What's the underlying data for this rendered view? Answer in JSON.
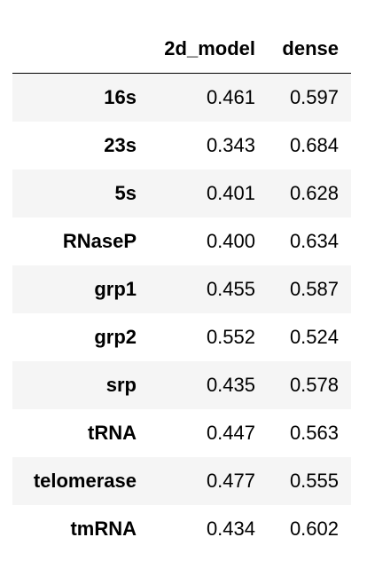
{
  "table": {
    "index_header": "",
    "columns": [
      "2d_model",
      "dense"
    ],
    "rows": [
      {
        "label": "16s",
        "values": [
          "0.461",
          "0.597"
        ]
      },
      {
        "label": "23s",
        "values": [
          "0.343",
          "0.684"
        ]
      },
      {
        "label": "5s",
        "values": [
          "0.401",
          "0.628"
        ]
      },
      {
        "label": "RNaseP",
        "values": [
          "0.400",
          "0.634"
        ]
      },
      {
        "label": "grp1",
        "values": [
          "0.455",
          "0.587"
        ]
      },
      {
        "label": "grp2",
        "values": [
          "0.552",
          "0.524"
        ]
      },
      {
        "label": "srp",
        "values": [
          "0.435",
          "0.578"
        ]
      },
      {
        "label": "tRNA",
        "values": [
          "0.447",
          "0.563"
        ]
      },
      {
        "label": "telomerase",
        "values": [
          "0.477",
          "0.555"
        ]
      },
      {
        "label": "tmRNA",
        "values": [
          "0.434",
          "0.602"
        ]
      }
    ]
  }
}
